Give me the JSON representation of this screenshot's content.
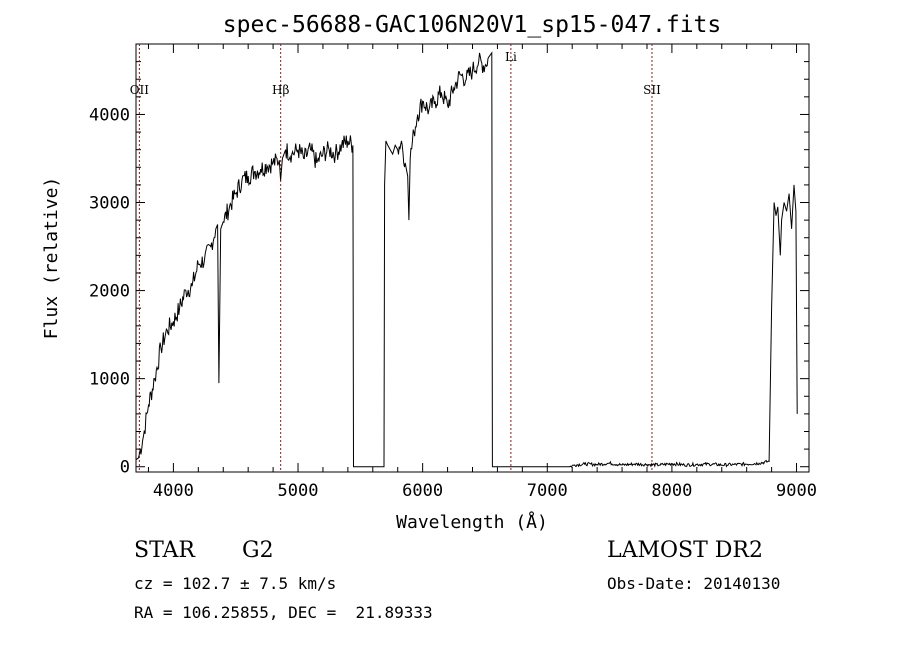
{
  "chart_data": {
    "type": "line",
    "title": "spec-56688-GAC106N20V1_sp15-047.fits",
    "xlabel": "Wavelength (Å)",
    "ylabel": "Flux (relative)",
    "xlim": [
      3700,
      9100
    ],
    "ylim": [
      -60,
      4800
    ],
    "xticks": [
      4000,
      5000,
      6000,
      7000,
      8000,
      9000
    ],
    "yticks": [
      0,
      1000,
      2000,
      3000,
      4000
    ],
    "grid": false,
    "legend": "none",
    "line_color": "#000000",
    "marker_color": "#8b1a1a",
    "lines": [
      {
        "label": "OII",
        "x": 3727
      },
      {
        "label": "Hβ",
        "x": 4861
      },
      {
        "label": "Li",
        "x": 6708
      },
      {
        "label": "SII",
        "x": 7840
      }
    ],
    "spectrum": {
      "x": [
        3700,
        3720,
        3760,
        3800,
        3850,
        3900,
        3950,
        4000,
        4050,
        4100,
        4150,
        4200,
        4250,
        4300,
        4340,
        4355,
        4365,
        4380,
        4400,
        4450,
        4500,
        4550,
        4600,
        4650,
        4700,
        4750,
        4800,
        4850,
        4860,
        4875,
        4900,
        4950,
        5000,
        5050,
        5100,
        5150,
        5200,
        5250,
        5300,
        5350,
        5400,
        5440,
        5445,
        5690,
        5695,
        5705,
        5720,
        5740,
        5760,
        5780,
        5800,
        5830,
        5860,
        5880,
        5890,
        5900,
        5930,
        5960,
        6000,
        6050,
        6100,
        6150,
        6200,
        6250,
        6300,
        6350,
        6400,
        6450,
        6500,
        6530,
        6555,
        6560,
        7180,
        7220,
        7300,
        7400,
        7500,
        7600,
        7700,
        7800,
        7900,
        8000,
        8100,
        8200,
        8300,
        8400,
        8500,
        8600,
        8700,
        8780,
        8800,
        8820,
        8835,
        8850,
        8870,
        8880,
        8900,
        8920,
        8940,
        8960,
        8980,
        8995,
        9005
      ],
      "y": [
        80,
        100,
        350,
        700,
        1000,
        1350,
        1550,
        1650,
        1800,
        2000,
        2050,
        2300,
        2350,
        2500,
        2700,
        2750,
        950,
        2700,
        2780,
        2950,
        3100,
        3250,
        3300,
        3350,
        3380,
        3420,
        3450,
        3480,
        3250,
        3500,
        3600,
        3550,
        3600,
        3500,
        3600,
        3450,
        3550,
        3600,
        3550,
        3650,
        3700,
        3650,
        0,
        0,
        3200,
        3700,
        3650,
        3600,
        3550,
        3650,
        3600,
        3700,
        3450,
        3300,
        2800,
        3500,
        3800,
        4000,
        4150,
        4050,
        4150,
        4250,
        4100,
        4300,
        4450,
        4400,
        4500,
        4600,
        4550,
        4650,
        4700,
        0,
        0,
        20,
        30,
        25,
        40,
        20,
        30,
        25,
        20,
        35,
        20,
        25,
        30,
        20,
        25,
        30,
        40,
        60,
        1800,
        3000,
        2850,
        2950,
        2400,
        2800,
        3000,
        2900,
        3100,
        2700,
        3200,
        2900,
        600
      ]
    }
  },
  "info": {
    "class": "STAR",
    "subclass": "G2",
    "survey": "LAMOST DR2",
    "cz": "cz = 102.7 ± 7.5 km/s",
    "obs_date": "Obs-Date: 20140130",
    "radec": "RA = 106.25855, DEC =  21.89333"
  }
}
